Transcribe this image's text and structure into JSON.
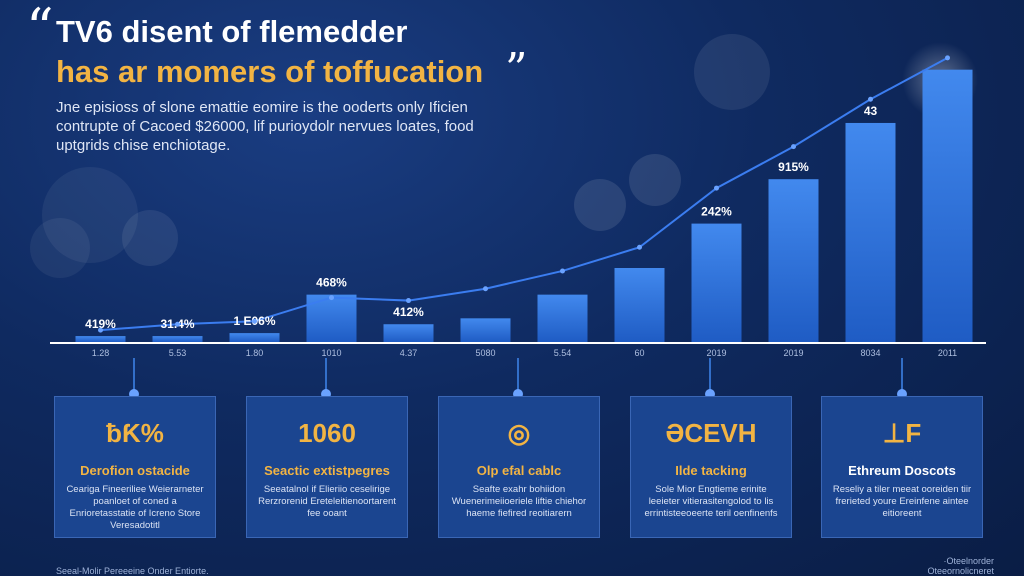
{
  "header": {
    "quote_open": "“",
    "quote_close": "”",
    "title_line1": "TV6 disent of flemedder",
    "title_line2": "has ar momers of toffucation",
    "subtitle": "Jne episioss of slone emattie eomire is the ooderts only Ificien contrupte of Cacoed $26000, lif purioydolr nervues loates, food uptgrids chise enchiotage."
  },
  "chart_data": {
    "type": "bar",
    "categories": [
      "1.28",
      "5.53",
      "1.80",
      "1010",
      "4.37",
      "5080",
      "5.54",
      "60",
      "2019",
      "2019",
      "8034",
      "2011"
    ],
    "values": [
      2,
      2,
      3,
      16,
      6,
      8,
      16,
      25,
      40,
      55,
      74,
      92
    ],
    "ylim": [
      0,
      100
    ],
    "bar_labels": [
      "",
      "",
      "",
      "",
      "",
      "",
      "",
      "",
      "",
      "",
      "",
      ""
    ],
    "value_labels": [
      "419%",
      "31.4%",
      "1 E06%",
      "468%",
      "412%",
      "",
      "",
      "",
      "242%",
      "915%",
      "43",
      ""
    ],
    "trend_line": [
      4,
      6,
      7,
      15,
      14,
      18,
      24,
      32,
      52,
      66,
      82,
      96
    ],
    "colors": {
      "bar": "#2f6fd6",
      "bar_top": "#3f86ec",
      "line": "#3b7df0",
      "axis": "#ffffff",
      "accent": "#f2b443"
    }
  },
  "cards": [
    {
      "icon": "ƀƘ%",
      "title": "Derofion ostacide",
      "desc": "Ceariga Fineeriliee Weierarneter poanloet of coned a Enrioretasstatie of Icreno Store Veresadotitl"
    },
    {
      "icon": "1060",
      "title": "Seactic extistpegres",
      "desc": "Seeatalnol if Elieriio ceselirige Rerzrorenid Ereteleitienoortarent fee ooant"
    },
    {
      "icon": "◎",
      "title": "Olp efal cablc",
      "desc": "Seafte exahr bohiidon Wuenerimeiioeriele liftie chiehor haeme fiefired reoitiarern"
    },
    {
      "icon": "ƏCEVH",
      "title": "Ilde tacking",
      "desc": "Sole Mior Engtieme erinite leeieter vitierasitengolod to lis errintisteeoeerte teril oenfinenfs"
    },
    {
      "icon": "⊥F",
      "title": "Ethreum Doscots",
      "desc": "Reseliy a tiler meeat ooreiden tiir frerieted youre Ereinfene aintee eitioreent",
      "white_title": true
    }
  ],
  "footer": {
    "left": "Seeal-Molir Pereeeine Onder Entiorte.",
    "right_line1": "·Oteelnorder",
    "right_line2": "Oteeornolicneret"
  }
}
